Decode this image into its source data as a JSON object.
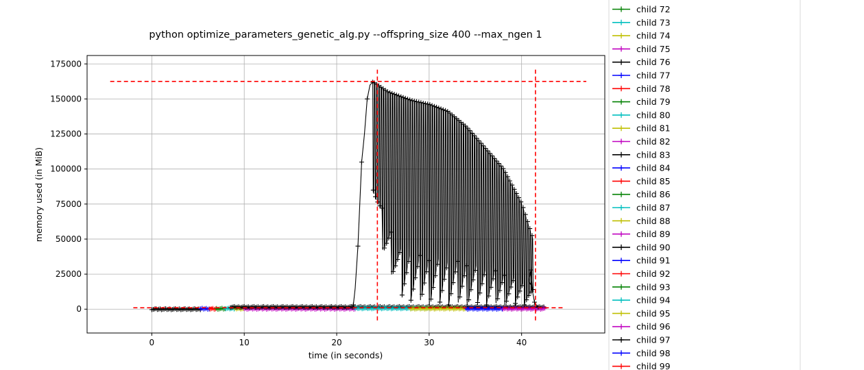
{
  "chart_data": {
    "type": "line",
    "title": "python optimize_parameters_genetic_alg.py --offspring_size 400 --max_ngen 1",
    "xlabel": "time (in seconds)",
    "ylabel": "memory used (in MiB)",
    "xlim": [
      -7,
      49
    ],
    "ylim": [
      -17000,
      181000
    ],
    "xticks": [
      0,
      10,
      20,
      30,
      40
    ],
    "yticks": [
      0,
      25000,
      50000,
      75000,
      100000,
      125000,
      150000,
      175000
    ],
    "grid": true,
    "marker": "+",
    "legend_placement": "outside-right",
    "colors": {
      "black": "#000000",
      "blue": "#0000ff",
      "red": "#ff0000",
      "green": "#008000",
      "cyan": "#00bfbf",
      "yellow": "#bfbf00",
      "magenta": "#bf00bf"
    },
    "reference_lines": [
      {
        "orientation": "horizontal",
        "y": 162500,
        "x_range": [
          -4.5,
          47
        ],
        "color": "#ff0000",
        "style": "dashed"
      },
      {
        "orientation": "horizontal",
        "y": 1000,
        "x_range": [
          -2,
          44.5
        ],
        "color": "#ff0000",
        "style": "dashed"
      },
      {
        "orientation": "vertical",
        "x": 24.4,
        "y_range": [
          -8000,
          171000
        ],
        "color": "#ff0000",
        "style": "dashed"
      },
      {
        "orientation": "vertical",
        "x": 41.5,
        "y_range": [
          -8000,
          171000
        ],
        "color": "#ff0000",
        "style": "dashed"
      }
    ],
    "baseline_series": [
      {
        "color": "#000000",
        "x_range": [
          0,
          5.3
        ],
        "y": 0
      },
      {
        "color": "#0000ff",
        "x_range": [
          5.3,
          6.3
        ],
        "y": 300
      },
      {
        "color": "#ff0000",
        "x_range": [
          6.3,
          7.0
        ],
        "y": 300
      },
      {
        "color": "#008000",
        "x_range": [
          7.0,
          8.0
        ],
        "y": 300
      },
      {
        "color": "#00bfbf",
        "x_range": [
          8.0,
          9.0
        ],
        "y": 400
      },
      {
        "color": "#bfbf00",
        "x_range": [
          9.0,
          10.0
        ],
        "y": 400
      },
      {
        "color": "#bf00bf",
        "x_range": [
          10.0,
          22.0
        ],
        "y": 300
      },
      {
        "color": "#000000",
        "x_range": [
          8.5,
          42.5
        ],
        "y": 1500
      },
      {
        "color": "#00bfbf",
        "x_range": [
          22.0,
          30.0
        ],
        "y": 600
      },
      {
        "color": "#bfbf00",
        "x_range": [
          28.0,
          34.0
        ],
        "y": 400
      },
      {
        "color": "#0000ff",
        "x_range": [
          34.0,
          38.0
        ],
        "y": 300
      },
      {
        "color": "#bf00bf",
        "x_range": [
          38.0,
          42.5
        ],
        "y": 300
      }
    ],
    "main_series": {
      "name": "",
      "color": "#000000",
      "ramp": {
        "x": [
          21.8,
          22.0,
          22.3,
          22.5,
          22.7,
          23.0,
          23.3,
          23.6,
          23.9
        ],
        "y": [
          3000,
          15000,
          45000,
          75000,
          105000,
          125000,
          150000,
          160000,
          162000
        ]
      },
      "dense_region": {
        "x_range": [
          23.9,
          41.2
        ],
        "count": 145,
        "high": {
          "x": [
            23.9,
            25.5,
            28.0,
            30.0,
            32.0,
            34.0,
            36.0,
            38.0,
            40.0,
            41.2
          ],
          "y": [
            162000,
            155000,
            149000,
            146000,
            141000,
            130000,
            115000,
            100000,
            75000,
            50000
          ]
        },
        "low": {
          "x": [
            23.9,
            25.0,
            27.0,
            30.0,
            35.0,
            41.2
          ],
          "y": [
            85000,
            40000,
            8000,
            3000,
            3000,
            3000
          ]
        }
      },
      "tail": {
        "x": [
          40.8,
          41.0,
          41.2,
          41.4,
          41.6,
          41.8
        ],
        "y": [
          20000,
          28000,
          12000,
          5000,
          3000,
          1500
        ]
      }
    },
    "legend": {
      "entries": [
        {
          "label": "child 72",
          "color": "#008000"
        },
        {
          "label": "child 73",
          "color": "#00bfbf"
        },
        {
          "label": "child 74",
          "color": "#bfbf00"
        },
        {
          "label": "child 75",
          "color": "#bf00bf"
        },
        {
          "label": "child 76",
          "color": "#000000"
        },
        {
          "label": "child 77",
          "color": "#0000ff"
        },
        {
          "label": "child 78",
          "color": "#ff0000"
        },
        {
          "label": "child 79",
          "color": "#008000"
        },
        {
          "label": "child 80",
          "color": "#00bfbf"
        },
        {
          "label": "child 81",
          "color": "#bfbf00"
        },
        {
          "label": "child 82",
          "color": "#bf00bf"
        },
        {
          "label": "child 83",
          "color": "#000000"
        },
        {
          "label": "child 84",
          "color": "#0000ff"
        },
        {
          "label": "child 85",
          "color": "#ff0000"
        },
        {
          "label": "child 86",
          "color": "#008000"
        },
        {
          "label": "child 87",
          "color": "#00bfbf"
        },
        {
          "label": "child 88",
          "color": "#bfbf00"
        },
        {
          "label": "child 89",
          "color": "#bf00bf"
        },
        {
          "label": "child 90",
          "color": "#000000"
        },
        {
          "label": "child 91",
          "color": "#0000ff"
        },
        {
          "label": "child 92",
          "color": "#ff0000"
        },
        {
          "label": "child 93",
          "color": "#008000"
        },
        {
          "label": "child 94",
          "color": "#00bfbf"
        },
        {
          "label": "child 95",
          "color": "#bfbf00"
        },
        {
          "label": "child 96",
          "color": "#bf00bf"
        },
        {
          "label": "child 97",
          "color": "#000000"
        },
        {
          "label": "child 98",
          "color": "#0000ff"
        },
        {
          "label": "child 99",
          "color": "#ff0000"
        }
      ]
    }
  }
}
